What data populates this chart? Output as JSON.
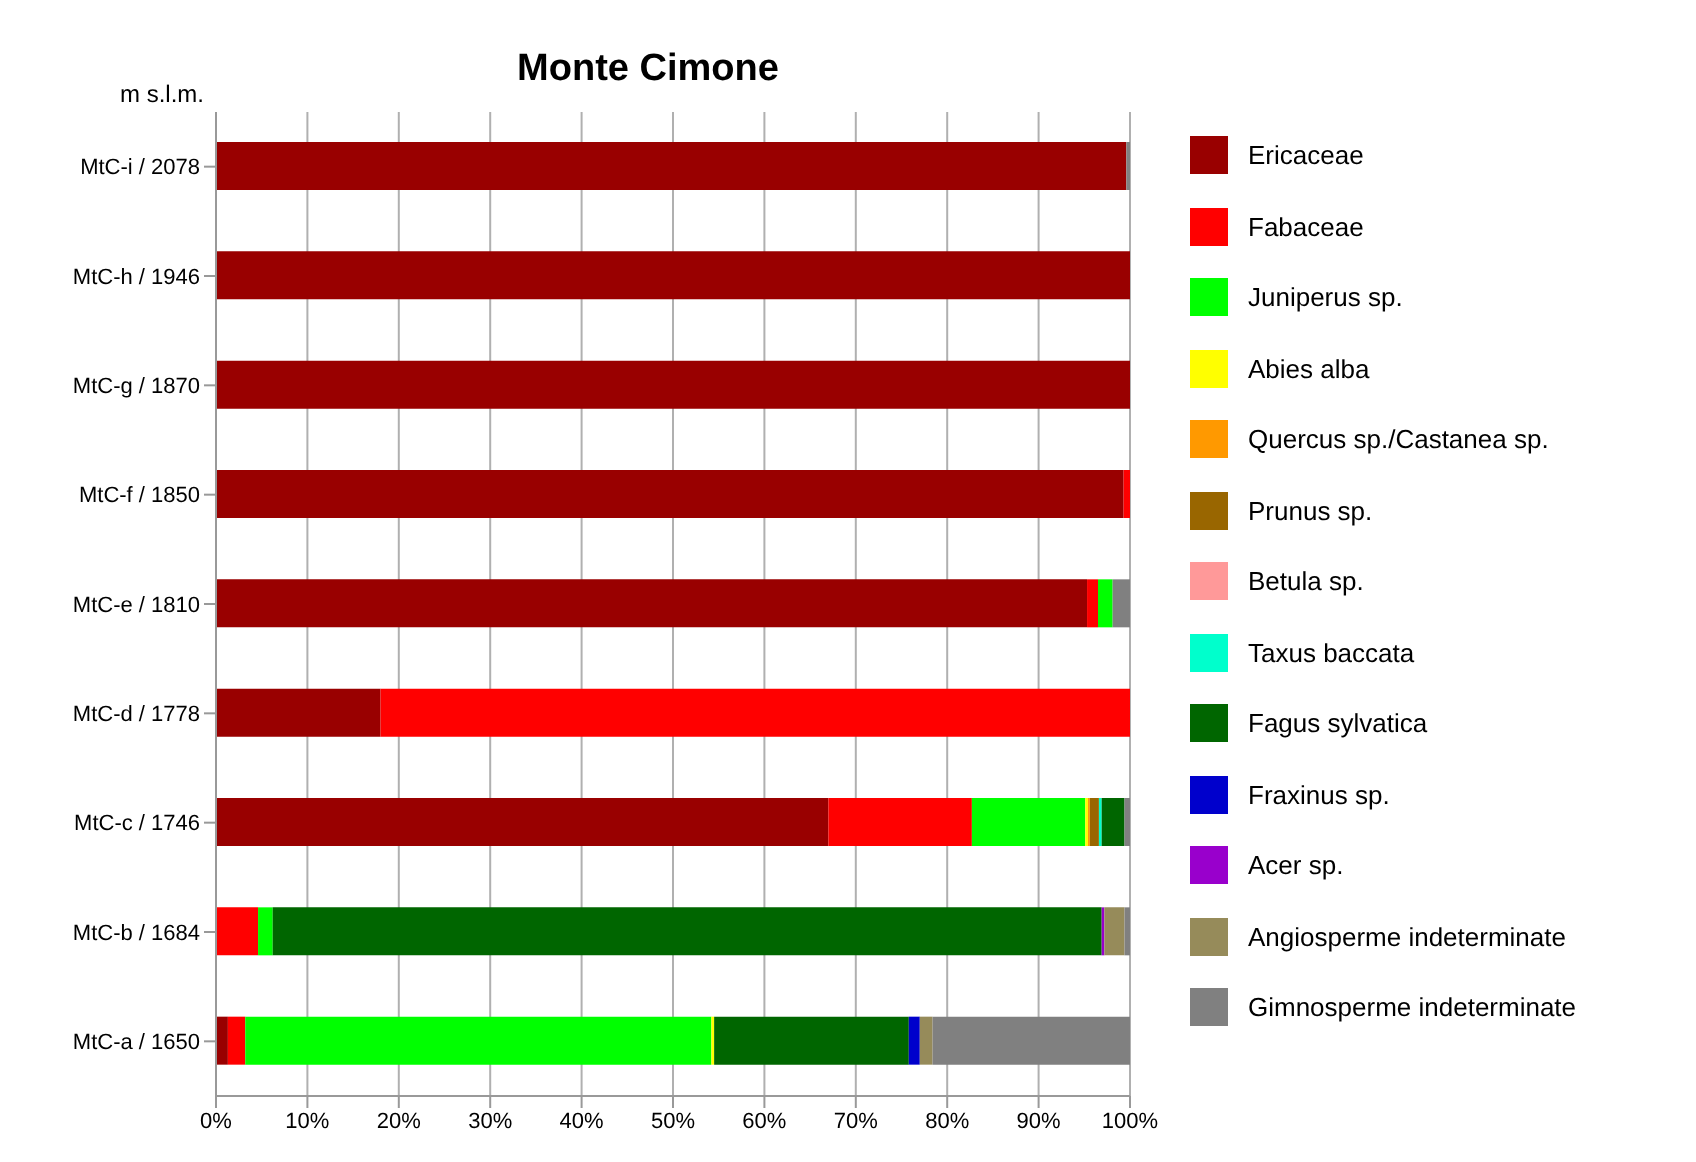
{
  "chart_data": {
    "type": "bar",
    "orientation": "horizontal",
    "stacked": true,
    "title": "Monte Cimone",
    "ylabel": "m s.l.m.",
    "categories": [
      "MtC-i / 2078",
      "MtC-h / 1946",
      "MtC-g / 1870",
      "MtC-f / 1850",
      "MtC-e / 1810",
      "MtC-d / 1778",
      "MtC-c / 1746",
      "MtC-b / 1684",
      "MtC-a / 1650"
    ],
    "series": [
      {
        "name": "Ericaceae",
        "color": "#990000",
        "values": [
          99.6,
          100,
          100,
          99.3,
          95.3,
          18,
          67,
          0,
          1.3
        ]
      },
      {
        "name": "Fabaceae",
        "color": "#ff0000",
        "values": [
          0,
          0,
          0,
          0.7,
          1.2,
          82,
          15.7,
          4.6,
          1.9
        ]
      },
      {
        "name": "Juniperus sp.",
        "color": "#00ff00",
        "values": [
          0,
          0,
          0,
          0,
          1.6,
          0,
          12.4,
          1.6,
          51
        ]
      },
      {
        "name": "Abies alba",
        "color": "#ffff00",
        "values": [
          0,
          0,
          0,
          0,
          0,
          0,
          0.3,
          0,
          0.3
        ]
      },
      {
        "name": "Quercus sp./Castanea sp.",
        "color": "#ff9900",
        "values": [
          0,
          0,
          0,
          0,
          0,
          0,
          0.2,
          0,
          0
        ]
      },
      {
        "name": "Prunus sp.",
        "color": "#996600",
        "values": [
          0,
          0,
          0,
          0,
          0,
          0,
          1,
          0,
          0
        ]
      },
      {
        "name": "Betula sp.",
        "color": "#ff9999",
        "values": [
          0,
          0,
          0,
          0,
          0,
          0,
          0,
          0,
          0
        ]
      },
      {
        "name": "Taxus baccata",
        "color": "#00ffcc",
        "values": [
          0,
          0,
          0,
          0,
          0,
          0,
          0.3,
          0,
          0
        ]
      },
      {
        "name": "Fagus sylvatica",
        "color": "#006600",
        "values": [
          0,
          0,
          0,
          0,
          0,
          0,
          2.5,
          90.7,
          21.3
        ]
      },
      {
        "name": "Fraxinus sp.",
        "color": "#0000cc",
        "values": [
          0,
          0,
          0,
          0,
          0,
          0,
          0,
          0,
          1.2
        ]
      },
      {
        "name": "Acer sp.",
        "color": "#9900cc",
        "values": [
          0,
          0,
          0,
          0,
          0,
          0,
          0,
          0.3,
          0
        ]
      },
      {
        "name": "Angiosperme indeterminate",
        "color": "#968b5a",
        "values": [
          0,
          0,
          0,
          0,
          0,
          0,
          0,
          2.2,
          1.4
        ]
      },
      {
        "name": "Gimnosperme indeterminate",
        "color": "#808080",
        "values": [
          0.4,
          0,
          0,
          0,
          1.9,
          0,
          0.6,
          0.6,
          21.6
        ]
      }
    ],
    "xlim": [
      0,
      100
    ],
    "xticks": [
      {
        "value": 0,
        "label": "0%"
      },
      {
        "value": 10,
        "label": "10%"
      },
      {
        "value": 20,
        "label": "20%"
      },
      {
        "value": 30,
        "label": "30%"
      },
      {
        "value": 40,
        "label": "40%"
      },
      {
        "value": 50,
        "label": "50%"
      },
      {
        "value": 60,
        "label": "60%"
      },
      {
        "value": 70,
        "label": "70%"
      },
      {
        "value": 80,
        "label": "80%"
      },
      {
        "value": 90,
        "label": "90%"
      },
      {
        "value": 100,
        "label": "100%"
      }
    ],
    "grid": "x",
    "legend": "right"
  }
}
